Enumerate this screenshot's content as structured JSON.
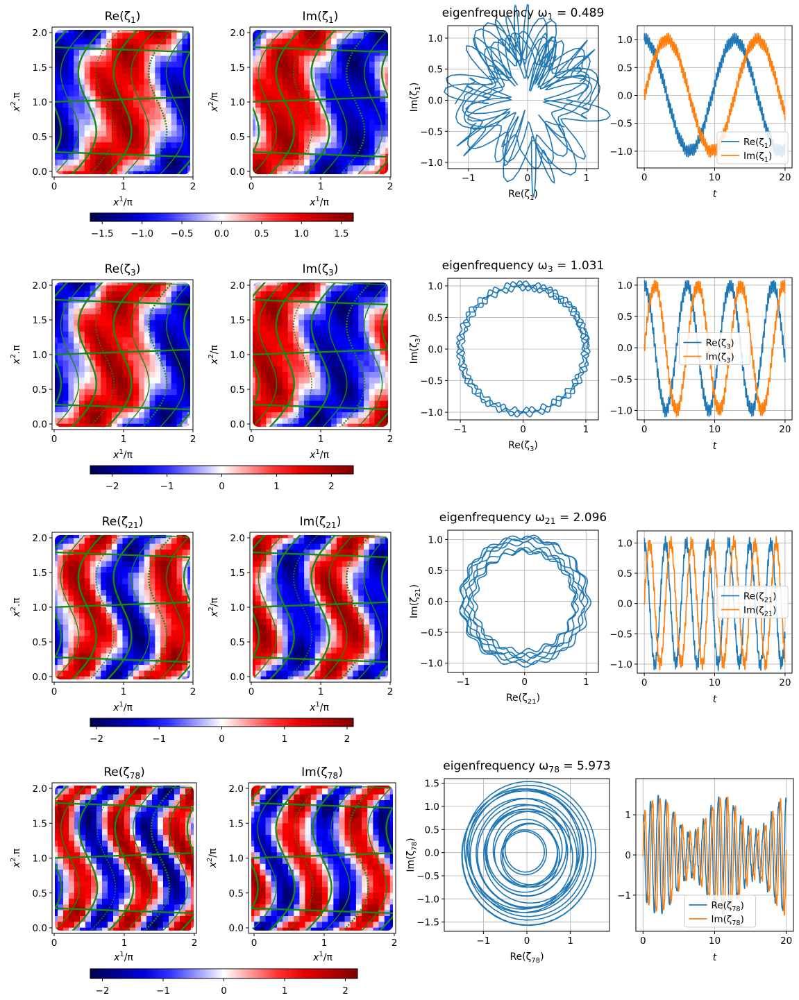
{
  "chart_data": {
    "type": "figure",
    "rows": [
      {
        "mode": 1,
        "heatmap_titles": [
          "Re(ζ1)",
          "Im(ζ1)"
        ],
        "heatmap_xlabel": "x1/π",
        "heatmap_ylabels": [
          "x2.π",
          "x2/π"
        ],
        "heatmap_xticks": [
          "0",
          "1",
          "2"
        ],
        "heatmap_yticks": [
          "0.0",
          "0.5",
          "1.0",
          "1.5",
          "2.0"
        ],
        "heatmap_range": [
          0,
          2
        ],
        "colorbar": {
          "min": -1.65,
          "max": 1.65,
          "ticks": [
            -1.5,
            -1.0,
            -0.5,
            0.0,
            0.5,
            1.0,
            1.5
          ],
          "tick_labels": [
            "−1.5",
            "−1.0",
            "−0.5",
            "0.0",
            "0.5",
            "1.0",
            "1.5"
          ]
        },
        "phase_title": "eigenfrequency ω1 = 0.489",
        "phase_xlabel": "Re(ζ1)",
        "phase_ylabel": "Im(ζ1)",
        "phase_xticks": [
          -1,
          0,
          1
        ],
        "phase_yticks": [
          -1.0,
          -0.5,
          0.0,
          0.5,
          1.0
        ],
        "phase_xlim": [
          -1.35,
          1.2
        ],
        "phase_ylim": [
          -1.1,
          1.2
        ],
        "omega": 0.489,
        "ts_xlabel": "t",
        "ts_xticks": [
          0,
          10,
          20
        ],
        "ts_yticks": [
          -1.0,
          -0.5,
          0.0,
          0.5,
          1.0
        ],
        "ts_xlim": [
          -1,
          21
        ],
        "ts_ylim": [
          -1.3,
          1.25
        ],
        "legend": [
          "Re(ζ1)",
          "Im(ζ1)"
        ],
        "legend_loc": "lower right"
      },
      {
        "mode": 3,
        "heatmap_titles": [
          "Re(ζ3)",
          "Im(ζ3)"
        ],
        "heatmap_xlabel": "x1/π",
        "heatmap_ylabels": [
          "x2.π",
          "x2/π"
        ],
        "heatmap_xticks": [
          "0",
          "1",
          "2"
        ],
        "heatmap_yticks": [
          "0.0",
          "0.5",
          "1.0",
          "1.5",
          "2.0"
        ],
        "heatmap_range": [
          0,
          2
        ],
        "colorbar": {
          "min": -2.4,
          "max": 2.4,
          "ticks": [
            -2,
            -1,
            0,
            1,
            2
          ],
          "tick_labels": [
            "−2",
            "−1",
            "0",
            "1",
            "2"
          ]
        },
        "phase_title": "eigenfrequency ω3 = 1.031",
        "phase_xlabel": "Re(ζ3)",
        "phase_ylabel": "Im(ζ3)",
        "phase_xticks": [
          -1,
          0,
          1
        ],
        "phase_yticks": [
          -1.0,
          -0.5,
          0.0,
          0.5,
          1.0
        ],
        "phase_xlim": [
          -1.2,
          1.2
        ],
        "phase_ylim": [
          -1.12,
          1.12
        ],
        "omega": 1.031,
        "ts_xlabel": "t",
        "ts_xticks": [
          0,
          10,
          20
        ],
        "ts_yticks": [
          -1.0,
          -0.5,
          0.0,
          0.5,
          1.0
        ],
        "ts_xlim": [
          -1,
          21
        ],
        "ts_ylim": [
          -1.15,
          1.12
        ],
        "legend": [
          "Re(ζ3)",
          "Im(ζ3)"
        ],
        "legend_loc": "center"
      },
      {
        "mode": 21,
        "heatmap_titles": [
          "Re(ζ21)",
          "Im(ζ21)"
        ],
        "heatmap_xlabel": "x1/π",
        "heatmap_ylabels": [
          "x2.π",
          "x2/π"
        ],
        "heatmap_xticks": [
          "0",
          "1",
          "2"
        ],
        "heatmap_yticks": [
          "0.0",
          "0.5",
          "1.0",
          "1.5",
          "2.0"
        ],
        "heatmap_range": [
          0,
          2
        ],
        "colorbar": {
          "min": -2.1,
          "max": 2.1,
          "ticks": [
            -2,
            -1,
            0,
            1,
            2
          ],
          "tick_labels": [
            "−2",
            "−1",
            "0",
            "1",
            "2"
          ]
        },
        "phase_title": "eigenfrequency ω21 = 2.096",
        "phase_xlabel": "Re(ζ21)",
        "phase_ylabel": "Im(ζ21)",
        "phase_xticks": [
          -1,
          0,
          1
        ],
        "phase_yticks": [
          -1.0,
          -0.5,
          0.0,
          0.5,
          1.0
        ],
        "phase_xlim": [
          -1.25,
          1.2
        ],
        "phase_ylim": [
          -1.15,
          1.15
        ],
        "omega": 2.096,
        "ts_xlabel": "t",
        "ts_xticks": [
          0,
          10,
          20
        ],
        "ts_yticks": [
          -1.0,
          -0.5,
          0.0,
          0.5,
          1.0
        ],
        "ts_xlim": [
          -1,
          21
        ],
        "ts_ylim": [
          -1.15,
          1.2
        ],
        "legend": [
          "Re(ζ21)",
          "Im(ζ21)"
        ],
        "legend_loc": "center right"
      },
      {
        "mode": 78,
        "heatmap_titles": [
          "Re(ζ78)",
          "Im(ζ78)"
        ],
        "heatmap_xlabel": "x1/π",
        "heatmap_ylabels": [
          "x2.π",
          "x2/π"
        ],
        "heatmap_xticks": [
          "0",
          "1",
          "2"
        ],
        "heatmap_yticks": [
          "0.0",
          "0.5",
          "1.0",
          "1.5",
          "2.0"
        ],
        "heatmap_range": [
          0,
          2
        ],
        "colorbar": {
          "min": -2.2,
          "max": 2.2,
          "ticks": [
            -2,
            -1,
            0,
            1,
            2
          ],
          "tick_labels": [
            "−2",
            "−1",
            "0",
            "1",
            "2"
          ]
        },
        "phase_title": "eigenfrequency ω78 = 5.973",
        "phase_xlabel": "Re(ζ78)",
        "phase_ylabel": "Im(ζ78)",
        "phase_xticks": [
          -1,
          0,
          1
        ],
        "phase_yticks": [
          -1.5,
          -1.0,
          -0.5,
          0.0,
          0.5,
          1.0,
          1.5
        ],
        "phase_xlim": [
          -1.9,
          1.9
        ],
        "phase_ylim": [
          -1.7,
          1.6
        ],
        "omega": 5.973,
        "ts_xlabel": "t",
        "ts_xticks": [
          0,
          10,
          20
        ],
        "ts_yticks": [
          -1,
          0,
          1
        ],
        "ts_xlim": [
          -1,
          21
        ],
        "ts_ylim": [
          -1.9,
          1.9
        ],
        "legend": [
          "Re(ζ78)",
          "Im(ζ78)"
        ],
        "legend_loc": "lower center"
      }
    ],
    "series_colors": {
      "re": "#1f77b4",
      "im": "#ff7f0e",
      "streamline": "#138a13",
      "grid": "#b0b0b0"
    },
    "colormap": "seismic",
    "grid": true
  }
}
